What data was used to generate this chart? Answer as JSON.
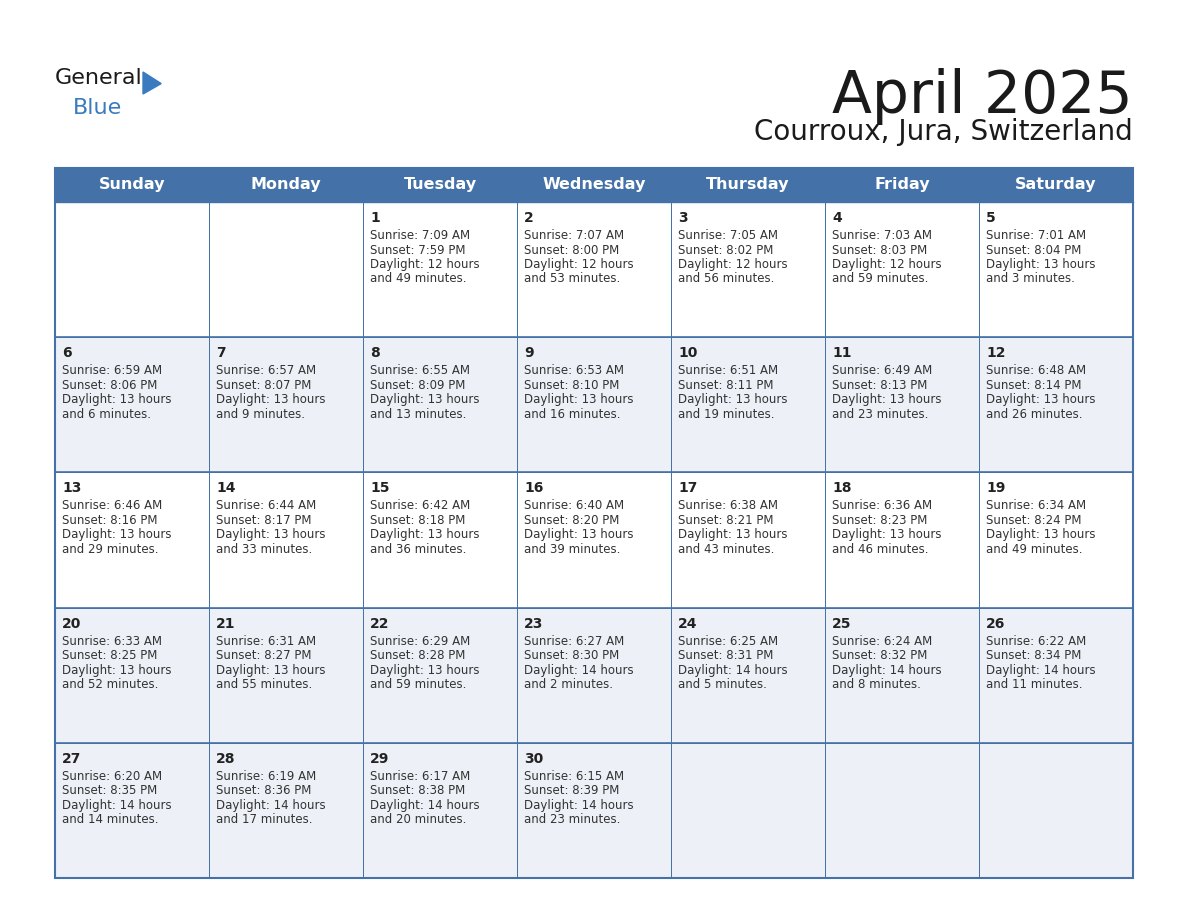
{
  "title": "April 2025",
  "subtitle": "Courroux, Jura, Switzerland",
  "header_bg_color": "#4472a8",
  "header_text_color": "#ffffff",
  "border_color": "#4472a8",
  "day_names": [
    "Sunday",
    "Monday",
    "Tuesday",
    "Wednesday",
    "Thursday",
    "Friday",
    "Saturday"
  ],
  "title_color": "#1a1a1a",
  "subtitle_color": "#1a1a1a",
  "cell_text_color": "#333333",
  "day_num_color": "#222222",
  "row_bg_colors": [
    "#ffffff",
    "#eef2f7",
    "#ffffff",
    "#eef2f7",
    "#eef2f7"
  ],
  "logo_general_color": "#1a1a1a",
  "logo_blue_color": "#3a7bbf",
  "logo_triangle_color": "#3a7bbf",
  "calendar": [
    [
      {
        "day": null,
        "info": ""
      },
      {
        "day": null,
        "info": ""
      },
      {
        "day": 1,
        "info": "Sunrise: 7:09 AM\nSunset: 7:59 PM\nDaylight: 12 hours\nand 49 minutes."
      },
      {
        "day": 2,
        "info": "Sunrise: 7:07 AM\nSunset: 8:00 PM\nDaylight: 12 hours\nand 53 minutes."
      },
      {
        "day": 3,
        "info": "Sunrise: 7:05 AM\nSunset: 8:02 PM\nDaylight: 12 hours\nand 56 minutes."
      },
      {
        "day": 4,
        "info": "Sunrise: 7:03 AM\nSunset: 8:03 PM\nDaylight: 12 hours\nand 59 minutes."
      },
      {
        "day": 5,
        "info": "Sunrise: 7:01 AM\nSunset: 8:04 PM\nDaylight: 13 hours\nand 3 minutes."
      }
    ],
    [
      {
        "day": 6,
        "info": "Sunrise: 6:59 AM\nSunset: 8:06 PM\nDaylight: 13 hours\nand 6 minutes."
      },
      {
        "day": 7,
        "info": "Sunrise: 6:57 AM\nSunset: 8:07 PM\nDaylight: 13 hours\nand 9 minutes."
      },
      {
        "day": 8,
        "info": "Sunrise: 6:55 AM\nSunset: 8:09 PM\nDaylight: 13 hours\nand 13 minutes."
      },
      {
        "day": 9,
        "info": "Sunrise: 6:53 AM\nSunset: 8:10 PM\nDaylight: 13 hours\nand 16 minutes."
      },
      {
        "day": 10,
        "info": "Sunrise: 6:51 AM\nSunset: 8:11 PM\nDaylight: 13 hours\nand 19 minutes."
      },
      {
        "day": 11,
        "info": "Sunrise: 6:49 AM\nSunset: 8:13 PM\nDaylight: 13 hours\nand 23 minutes."
      },
      {
        "day": 12,
        "info": "Sunrise: 6:48 AM\nSunset: 8:14 PM\nDaylight: 13 hours\nand 26 minutes."
      }
    ],
    [
      {
        "day": 13,
        "info": "Sunrise: 6:46 AM\nSunset: 8:16 PM\nDaylight: 13 hours\nand 29 minutes."
      },
      {
        "day": 14,
        "info": "Sunrise: 6:44 AM\nSunset: 8:17 PM\nDaylight: 13 hours\nand 33 minutes."
      },
      {
        "day": 15,
        "info": "Sunrise: 6:42 AM\nSunset: 8:18 PM\nDaylight: 13 hours\nand 36 minutes."
      },
      {
        "day": 16,
        "info": "Sunrise: 6:40 AM\nSunset: 8:20 PM\nDaylight: 13 hours\nand 39 minutes."
      },
      {
        "day": 17,
        "info": "Sunrise: 6:38 AM\nSunset: 8:21 PM\nDaylight: 13 hours\nand 43 minutes."
      },
      {
        "day": 18,
        "info": "Sunrise: 6:36 AM\nSunset: 8:23 PM\nDaylight: 13 hours\nand 46 minutes."
      },
      {
        "day": 19,
        "info": "Sunrise: 6:34 AM\nSunset: 8:24 PM\nDaylight: 13 hours\nand 49 minutes."
      }
    ],
    [
      {
        "day": 20,
        "info": "Sunrise: 6:33 AM\nSunset: 8:25 PM\nDaylight: 13 hours\nand 52 minutes."
      },
      {
        "day": 21,
        "info": "Sunrise: 6:31 AM\nSunset: 8:27 PM\nDaylight: 13 hours\nand 55 minutes."
      },
      {
        "day": 22,
        "info": "Sunrise: 6:29 AM\nSunset: 8:28 PM\nDaylight: 13 hours\nand 59 minutes."
      },
      {
        "day": 23,
        "info": "Sunrise: 6:27 AM\nSunset: 8:30 PM\nDaylight: 14 hours\nand 2 minutes."
      },
      {
        "day": 24,
        "info": "Sunrise: 6:25 AM\nSunset: 8:31 PM\nDaylight: 14 hours\nand 5 minutes."
      },
      {
        "day": 25,
        "info": "Sunrise: 6:24 AM\nSunset: 8:32 PM\nDaylight: 14 hours\nand 8 minutes."
      },
      {
        "day": 26,
        "info": "Sunrise: 6:22 AM\nSunset: 8:34 PM\nDaylight: 14 hours\nand 11 minutes."
      }
    ],
    [
      {
        "day": 27,
        "info": "Sunrise: 6:20 AM\nSunset: 8:35 PM\nDaylight: 14 hours\nand 14 minutes."
      },
      {
        "day": 28,
        "info": "Sunrise: 6:19 AM\nSunset: 8:36 PM\nDaylight: 14 hours\nand 17 minutes."
      },
      {
        "day": 29,
        "info": "Sunrise: 6:17 AM\nSunset: 8:38 PM\nDaylight: 14 hours\nand 20 minutes."
      },
      {
        "day": 30,
        "info": "Sunrise: 6:15 AM\nSunset: 8:39 PM\nDaylight: 14 hours\nand 23 minutes."
      },
      {
        "day": null,
        "info": ""
      },
      {
        "day": null,
        "info": ""
      },
      {
        "day": null,
        "info": ""
      }
    ]
  ]
}
